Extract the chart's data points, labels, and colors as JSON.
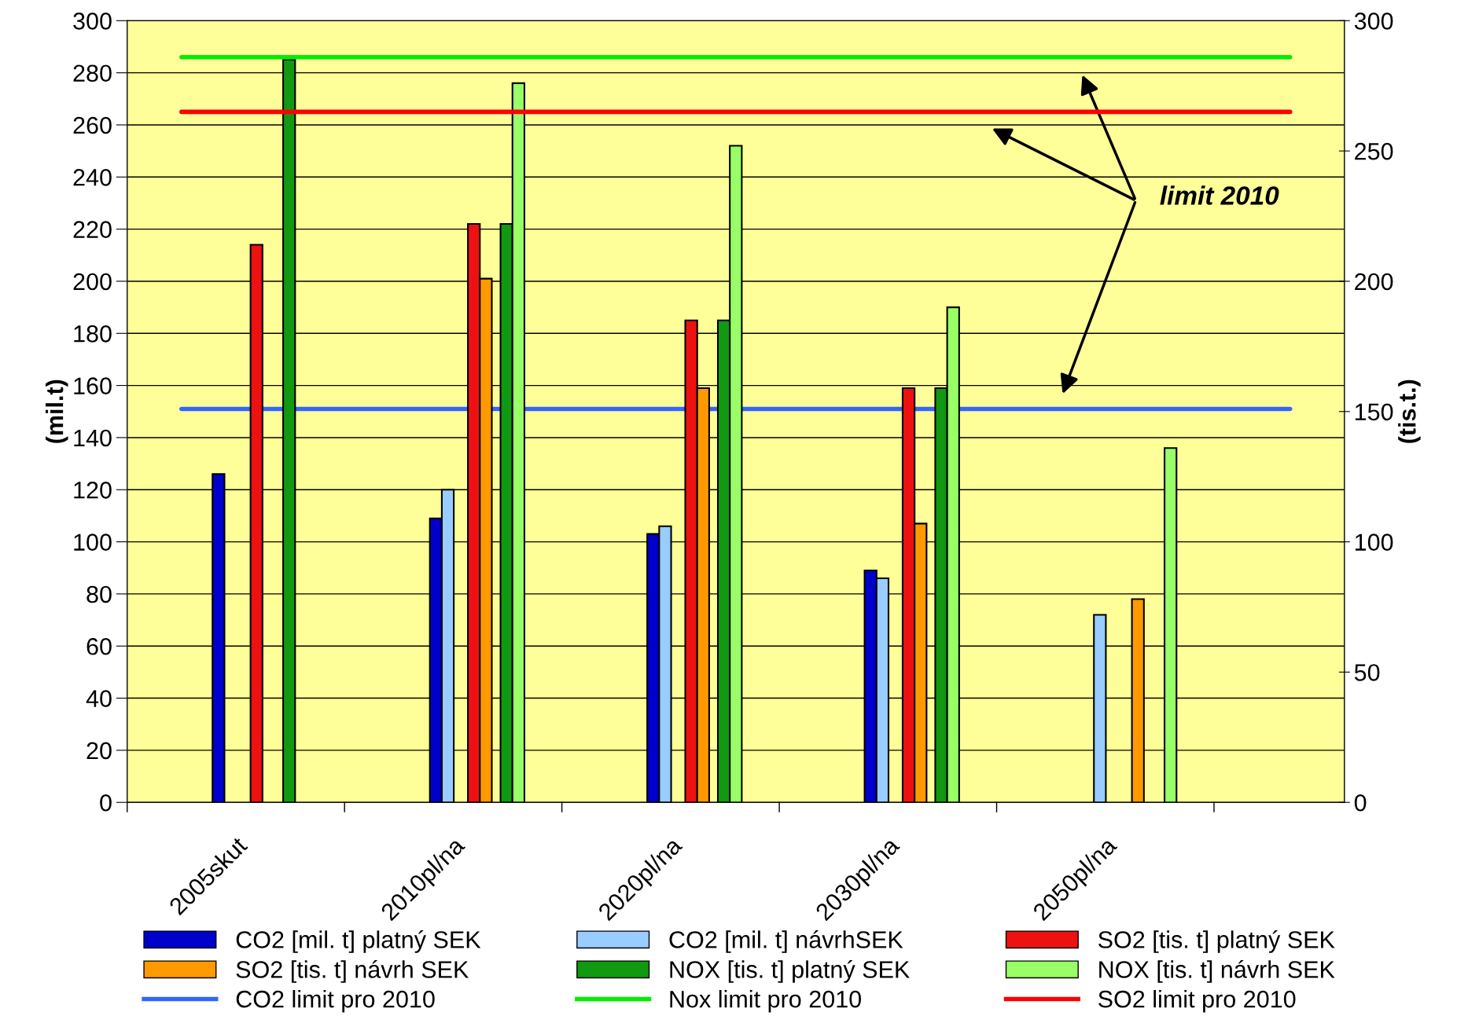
{
  "chart_data": {
    "type": "bar",
    "ylabel": "(mil.t)",
    "y2label": "(tis.t.)",
    "categories": [
      "2005skut",
      "2010pl/na",
      "2020pl/na",
      "2030pl/na",
      "2050pl/na"
    ],
    "series": [
      {
        "name": "CO2 [mil. t] platný SEK",
        "color": "#0000cc",
        "values": [
          126,
          109,
          103,
          89,
          null
        ]
      },
      {
        "name": "CO2 [mil. t] návrhSEK",
        "color": "#99ccff",
        "values": [
          null,
          120,
          106,
          86,
          72
        ]
      },
      {
        "name": "SO2 [tis. t] platný SEK",
        "color": "#ee1111",
        "axis": "y2",
        "values": [
          214,
          222,
          185,
          159,
          null
        ]
      },
      {
        "name": "SO2 [tis. t] návrh SEK",
        "color": "#ff9900",
        "axis": "y2",
        "values": [
          null,
          201,
          159,
          107,
          78
        ]
      },
      {
        "name": "NOX [tis. t] platný SEK",
        "color": "#119911",
        "axis": "y2",
        "values": [
          285,
          222,
          185,
          159,
          null
        ]
      },
      {
        "name": "NOX [tis. t] návrh SEK",
        "color": "#99ff66",
        "axis": "y2",
        "values": [
          null,
          276,
          252,
          190,
          136
        ]
      }
    ],
    "ref_lines": [
      {
        "axis": "y",
        "value": 151,
        "label": "CO2 limit pro 2010",
        "color": "#3366ff",
        "line_style": "solid"
      },
      {
        "axis": "y2",
        "value": 286,
        "label": "Nox limit pro 2010",
        "color": "#00ee00",
        "line_style": "solid"
      },
      {
        "axis": "y2",
        "value": 265,
        "label": "SO2 limit pro 2010",
        "color": "#ff0000",
        "line_style": "solid"
      }
    ],
    "annotations": [
      "limit 2010"
    ],
    "ylim": [
      0,
      300
    ],
    "yticks": [
      0,
      20,
      40,
      60,
      80,
      100,
      120,
      140,
      160,
      180,
      200,
      220,
      240,
      260,
      280,
      300
    ],
    "y2lim": [
      0,
      300
    ],
    "y2ticks": [
      0,
      50,
      100,
      150,
      200,
      250,
      300
    ],
    "grid": "y",
    "legend": "bottom"
  }
}
